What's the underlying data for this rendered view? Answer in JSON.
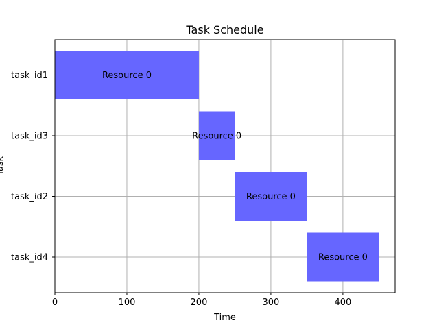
{
  "chart_data": {
    "type": "gantt",
    "title": "Task Schedule",
    "xlabel": "Time",
    "ylabel": "Task",
    "xlim": [
      0,
      472.5
    ],
    "xticks": [
      0,
      100,
      200,
      300,
      400
    ],
    "grid": true,
    "bar_color": "#6666ff",
    "tasks": [
      {
        "task": "task_id1",
        "start": 0,
        "end": 200,
        "label": "Resource 0"
      },
      {
        "task": "task_id3",
        "start": 200,
        "end": 250,
        "label": "Resource 0"
      },
      {
        "task": "task_id2",
        "start": 250,
        "end": 350,
        "label": "Resource 0"
      },
      {
        "task": "task_id4",
        "start": 350,
        "end": 450,
        "label": "Resource 0"
      }
    ]
  }
}
